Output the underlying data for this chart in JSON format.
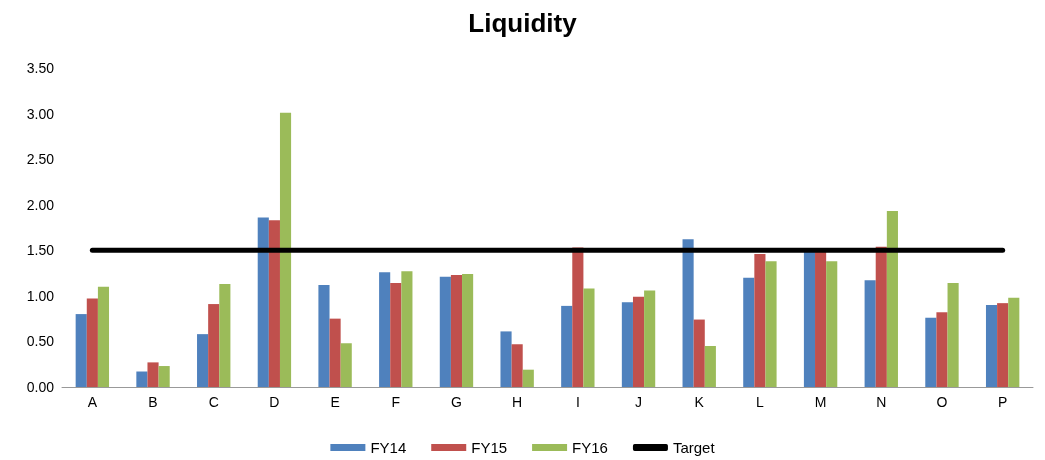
{
  "chart_data": {
    "type": "bar",
    "title": "Liquidity",
    "categories": [
      "A",
      "B",
      "C",
      "D",
      "E",
      "F",
      "G",
      "H",
      "I",
      "J",
      "K",
      "L",
      "M",
      "N",
      "O",
      "P"
    ],
    "series": [
      {
        "name": "FY14",
        "color": "#4f81bd",
        "values": [
          0.8,
          0.17,
          0.58,
          1.86,
          1.12,
          1.26,
          1.21,
          0.61,
          0.89,
          0.93,
          1.62,
          1.2,
          1.5,
          1.17,
          0.76,
          0.9
        ]
      },
      {
        "name": "FY15",
        "color": "#c0504d",
        "values": [
          0.97,
          0.27,
          0.91,
          1.83,
          0.75,
          1.14,
          1.23,
          0.47,
          1.53,
          0.99,
          0.74,
          1.46,
          1.5,
          1.54,
          0.82,
          0.92
        ]
      },
      {
        "name": "FY16",
        "color": "#9bbb59",
        "values": [
          1.1,
          0.23,
          1.13,
          3.01,
          0.48,
          1.27,
          1.24,
          0.19,
          1.08,
          1.06,
          0.45,
          1.38,
          1.38,
          1.93,
          1.14,
          0.98
        ]
      },
      {
        "name": "Target",
        "type": "line",
        "color": "#000000",
        "marker": "none",
        "values": [
          1.5,
          1.5,
          1.5,
          1.5,
          1.5,
          1.5,
          1.5,
          1.5,
          1.5,
          1.5,
          1.5,
          1.5,
          1.5,
          1.5,
          1.5,
          1.5
        ]
      }
    ],
    "ylim": [
      0,
      3.5
    ],
    "yticks": [
      {
        "value": 0,
        "label": "0.00"
      },
      {
        "value": 0.5,
        "label": "0.50"
      },
      {
        "value": 1,
        "label": "1.00"
      },
      {
        "value": 1.5,
        "label": "1.50"
      },
      {
        "value": 2,
        "label": "2.00"
      },
      {
        "value": 2.5,
        "label": "2.50"
      },
      {
        "value": 3,
        "label": "3.00"
      },
      {
        "value": 3.5,
        "label": "3.50"
      }
    ],
    "grid": false,
    "legend": "bottom"
  }
}
